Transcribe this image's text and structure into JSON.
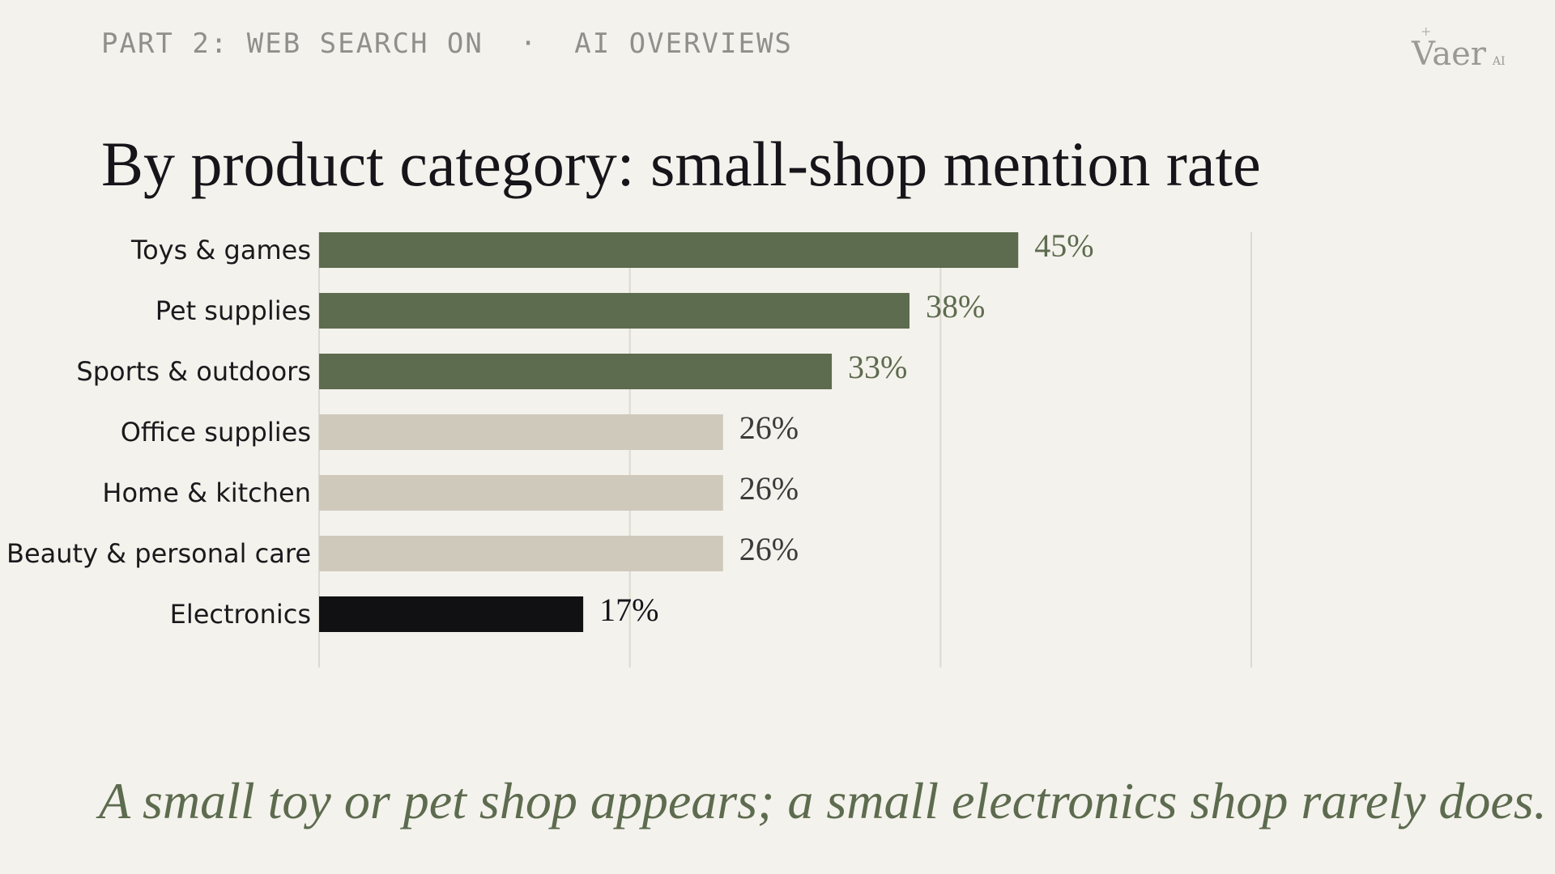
{
  "header": {
    "section": "PART 2: WEB SEARCH ON",
    "separator": "·",
    "subsection": "AI OVERVIEWS"
  },
  "logo": {
    "word": "Vaer",
    "suffix": "AI",
    "star": "+"
  },
  "title": "By product category: small-shop mention rate",
  "chart_data": {
    "type": "bar",
    "orientation": "horizontal",
    "categories": [
      "Toys & games",
      "Pet supplies",
      "Sports & outdoors",
      "Office supplies",
      "Home & kitchen",
      "Beauty & personal care",
      "Electronics"
    ],
    "values": [
      45,
      38,
      33,
      26,
      26,
      26,
      17
    ],
    "value_labels": [
      "45%",
      "38%",
      "33%",
      "26%",
      "26%",
      "26%",
      "17%"
    ],
    "unit": "%",
    "xlim": [
      0,
      60
    ],
    "gridlines_x": [
      0,
      20,
      40,
      60
    ],
    "grid": true,
    "legend": false,
    "colors": {
      "high": "#5d6b4f",
      "mid": "#cfc9bc",
      "low": "#111113",
      "label_high": "#5d6b4f",
      "label_mid": "#3a3a3a",
      "label_low": "#15151a",
      "gridline": "#dcd9d0"
    },
    "bar_groups": [
      "high",
      "high",
      "high",
      "mid",
      "mid",
      "mid",
      "low"
    ]
  },
  "caption": "A small toy or pet shop appears; a small electronics shop rarely does."
}
